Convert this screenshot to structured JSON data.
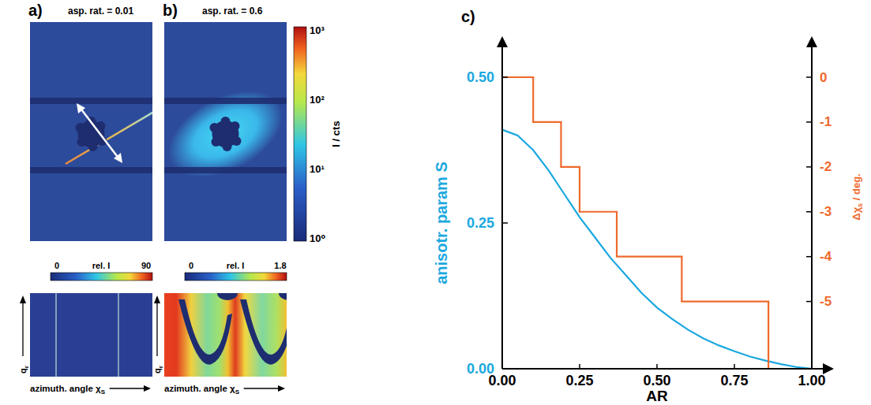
{
  "images": [
    {
      "letter": "a)",
      "title": "asp. rat. = 0.01",
      "rel_colorbar": {
        "label": "rel. I",
        "range": [
          0,
          90
        ],
        "ticks": [
          0,
          90
        ]
      }
    },
    {
      "letter": "b)",
      "title": "asp. rat. = 0.6",
      "rel_colorbar": {
        "label": "rel. I",
        "range": [
          0,
          1.8
        ],
        "ticks": [
          0,
          1.8
        ]
      }
    }
  ],
  "q_label": [
    "q",
    "r"
  ],
  "azimuth_label": [
    "azimuth. angle χ",
    "S"
  ],
  "colorbar": {
    "label": "I / cts",
    "range": [
      1,
      1000
    ],
    "log": true,
    "ticks": [
      {
        "value": 1,
        "label": "10⁰"
      },
      {
        "value": 10,
        "label": "10¹"
      },
      {
        "value": 100,
        "label": "10²"
      },
      {
        "value": 1000,
        "label": "10³"
      }
    ]
  },
  "chart_data": {
    "type": "line",
    "letter": "c)",
    "xlabel": "AR",
    "ylabel": "anisotr. param S",
    "y2label": [
      "Δχ",
      "s",
      " / deg."
    ],
    "xlim": [
      0,
      1
    ],
    "xticks": [
      {
        "value": 0,
        "label": "0.00"
      },
      {
        "value": 0.25,
        "label": "0.25"
      },
      {
        "value": 0.5,
        "label": "0.50"
      },
      {
        "value": 0.75,
        "label": "0.75"
      },
      {
        "value": 1,
        "label": "1.00"
      }
    ],
    "ylim": [
      0,
      0.5
    ],
    "yticks": [
      {
        "value": 0,
        "label": "0.00"
      },
      {
        "value": 0.25,
        "label": "0.25"
      },
      {
        "value": 0.5,
        "label": "0.50"
      }
    ],
    "y2lim": [
      -6.5,
      0
    ],
    "y2ticks": [
      0,
      -1,
      -2,
      -3,
      -4,
      -5
    ],
    "series": [
      {
        "color": "#1ba8df",
        "x": [
          0,
          0.05,
          0.1,
          0.15,
          0.2,
          0.25,
          0.3,
          0.35,
          0.4,
          0.45,
          0.5,
          0.55,
          0.6,
          0.65,
          0.7,
          0.75,
          0.8,
          0.85,
          0.9,
          0.95,
          1
        ],
        "values": [
          0.41,
          0.4,
          0.375,
          0.34,
          0.3,
          0.26,
          0.225,
          0.19,
          0.16,
          0.13,
          0.105,
          0.085,
          0.067,
          0.052,
          0.04,
          0.03,
          0.021,
          0.014,
          0.008,
          0.003,
          0
        ]
      },
      {
        "color": "#ef6a2c",
        "axis": "y2",
        "line_style": "step",
        "x": [
          0,
          0.1,
          0.19,
          0.25,
          0.37,
          0.58,
          0.86
        ],
        "values": [
          0,
          -1,
          -2,
          -3,
          -4,
          -5,
          -6.5
        ]
      }
    ]
  }
}
